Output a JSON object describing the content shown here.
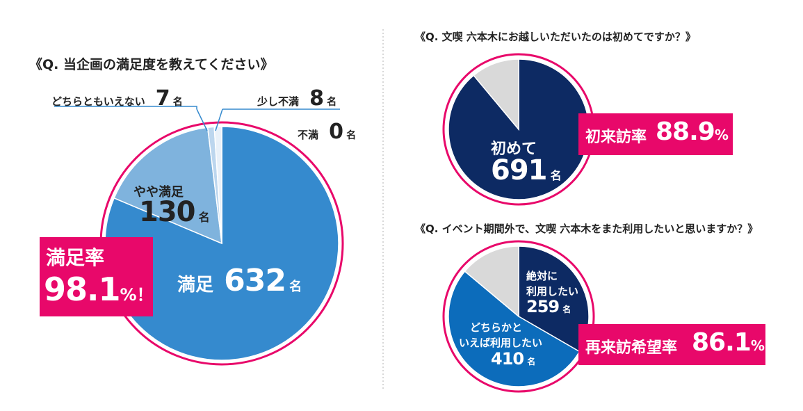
{
  "colors": {
    "accent": "#e8086a",
    "navy": "#0d2a63",
    "blue_main": "#358ace",
    "blue_light": "#7fb3dd",
    "blue_pale": "#bcd6ee",
    "blue_mid": "#0c6cbb",
    "gray": "#d9d9d9",
    "divider": "#bfbfbf"
  },
  "chart_data": [
    {
      "type": "pie",
      "title": "《Q. 当企画の満足度を教えてください》",
      "categories": [
        "満足",
        "やや満足",
        "どちらともいえない",
        "少し不満",
        "不満"
      ],
      "values": [
        632,
        130,
        7,
        8,
        0
      ],
      "unit": "名",
      "summary_label": "満足率",
      "summary_value": "98.1",
      "summary_suffix": "%！"
    },
    {
      "type": "pie",
      "title": "《Q. 文喫 六本木にお越しいただいたのは初めてですか？》",
      "categories": [
        "初めて",
        ""
      ],
      "values": [
        691,
        86
      ],
      "unit": "名",
      "summary_label": "初来訪率",
      "summary_value": "88.9",
      "summary_suffix": "%"
    },
    {
      "type": "pie",
      "title": "《Q. イベント期間外で、文喫 六本木をまた利用したいと思いますか？》",
      "categories": [
        "絶対に利用したい",
        "どちらかといえば利用したい",
        ""
      ],
      "values": [
        259,
        410,
        108
      ],
      "unit": "名",
      "summary_label": "再来訪希望率",
      "summary_value": "86.1",
      "summary_suffix": "%"
    }
  ],
  "labels": {
    "c1_manzoku": "満足",
    "c1_manzoku_val": "632",
    "c1_yaya_l1": "やや満足",
    "c1_yaya_val": "130",
    "c1_dochira": "どちらともいえない",
    "c1_dochira_val": "7",
    "c1_sukoshi": "少し不満",
    "c1_sukoshi_val": "8",
    "c1_fuman": "不満",
    "c1_fuman_val": "0",
    "c2_first": "初めて",
    "c2_first_val": "691",
    "c3_zettai_l1": "絶対に",
    "c3_zettai_l2": "利用したい",
    "c3_zettai_val": "259",
    "c3_dochira_l1": "どちらかと",
    "c3_dochira_l2": "いえば利用したい",
    "c3_dochira_val": "410",
    "unit": "名"
  }
}
